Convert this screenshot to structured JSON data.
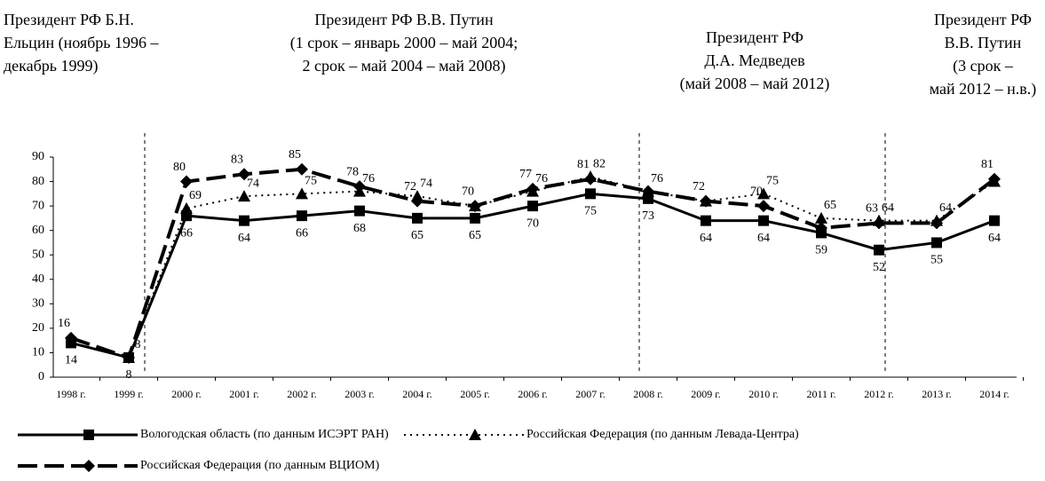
{
  "chart_data": {
    "type": "line",
    "annotations": [
      {
        "lines": [
          "Президент РФ Б.Н.",
          "Ельцин (ноябрь 1996 –",
          "декабрь 1999)"
        ]
      },
      {
        "lines": [
          "Президент РФ В.В. Путин",
          "(1 срок – январь 2000 – май 2004;",
          "2 срок – май 2004 – май 2008)"
        ]
      },
      {
        "lines": [
          "Президент РФ",
          "Д.А. Медведев",
          "(май 2008 – май 2012)"
        ]
      },
      {
        "lines": [
          "Президент РФ",
          "В.В. Путин",
          "(3 срок –",
          "май 2012 – н.в.)"
        ]
      }
    ],
    "categories": [
      "1998 г.",
      "1999 г.",
      "2000 г.",
      "2001 г.",
      "2002 г.",
      "2003 г.",
      "2004 г.",
      "2005 г.",
      "2006 г.",
      "2007 г.",
      "2008 г.",
      "2009 г.",
      "2010 г.",
      "2011 г.",
      "2012 г.",
      "2013 г.",
      "2014 г."
    ],
    "series": [
      {
        "name": "Вологодская область (по данным ИСЭРТ РАН)",
        "color": "#000000",
        "line_style": "solid",
        "marker": "square",
        "values": [
          14,
          8,
          66,
          64,
          66,
          68,
          65,
          65,
          70,
          75,
          73,
          64,
          64,
          59,
          52,
          55,
          64
        ]
      },
      {
        "name": "Российская Федерация (по данным Левада-Центра)",
        "color": "#000000",
        "line_style": "dotted",
        "marker": "triangle",
        "values": [
          null,
          8,
          69,
          74,
          75,
          76,
          74,
          70,
          76,
          82,
          76,
          72,
          75,
          65,
          64,
          64,
          80
        ],
        "value_labels": [
          null,
          "8",
          "69",
          "74",
          "75",
          "76",
          "74",
          null,
          "76",
          "82",
          "76",
          null,
          "75",
          "65",
          "64",
          "64",
          null
        ]
      },
      {
        "name": "Российская Федерация (по данным ВЦИОМ)",
        "color": "#000000",
        "line_style": "dashed",
        "marker": "diamond",
        "values": [
          16,
          8,
          80,
          83,
          85,
          78,
          72,
          70,
          77,
          81,
          76,
          72,
          70,
          61,
          63,
          63,
          81
        ],
        "value_labels": [
          "16",
          null,
          "80",
          "83",
          "85",
          "78",
          "72",
          "70",
          "77",
          "81",
          null,
          "72",
          "70",
          null,
          "63",
          null,
          "81"
        ]
      }
    ],
    "ylim": [
      0,
      90
    ],
    "yticks": [
      0,
      10,
      20,
      30,
      40,
      50,
      60,
      70,
      80,
      90
    ]
  }
}
